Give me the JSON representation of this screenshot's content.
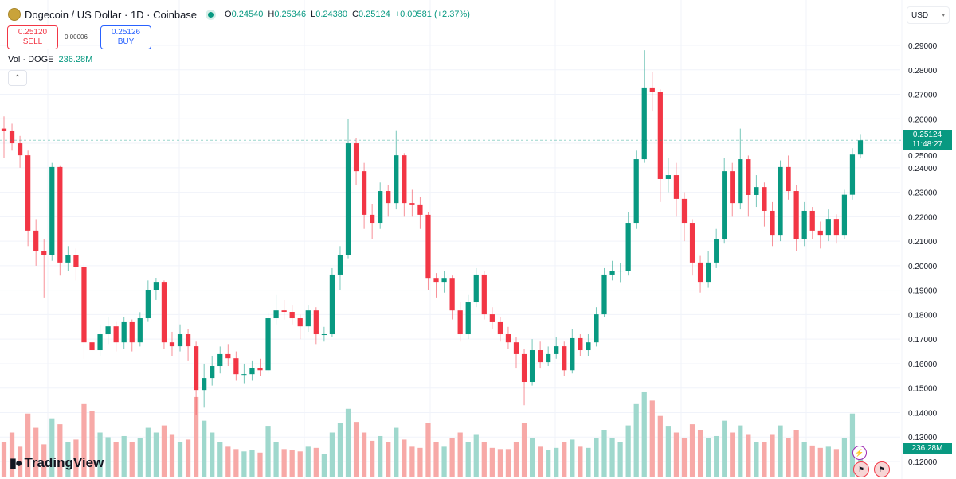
{
  "header": {
    "title": "Dogecoin / US Dollar · 1D · Coinbase",
    "open_label": "O",
    "open": "0.24540",
    "high_label": "H",
    "high": "0.25346",
    "low_label": "L",
    "low": "0.24380",
    "close_label": "C",
    "close": "0.25124",
    "change": "+0.00581 (+2.37%)",
    "market_status": "open"
  },
  "trade": {
    "sell_price": "0.25120",
    "sell_label": "SELL",
    "spread": "0.00006",
    "buy_price": "0.25126",
    "buy_label": "BUY"
  },
  "volume_legend": {
    "label": "Vol · DOGE",
    "value": "236.28M"
  },
  "collapse_icon": "chevron-up",
  "currency": {
    "selected": "USD"
  },
  "price_label": {
    "price": "0.25124",
    "countdown": "11:48:27"
  },
  "volume_label": "236.28M",
  "logo": "TradingView",
  "colors": {
    "up": "#089981",
    "down": "#f23645",
    "up_vol": "#9fd8cd",
    "down_vol": "#f7a9a7",
    "grid": "#f0f3fa"
  },
  "chart_data": {
    "type": "candlestick",
    "title": "Dogecoin / US Dollar · 1D · Coinbase",
    "y_ticks": [
      "0.29000",
      "0.28000",
      "0.27000",
      "0.26000",
      "0.25000",
      "0.24000",
      "0.23000",
      "0.22000",
      "0.21000",
      "0.20000",
      "0.19000",
      "0.18000",
      "0.17000",
      "0.16000",
      "0.15000",
      "0.14000",
      "0.13000",
      "0.12000"
    ],
    "ylim": [
      0.12,
      0.29
    ],
    "grid": true,
    "last_price": 0.25124,
    "ohlc": [
      [
        0.256,
        0.261,
        0.244,
        0.2549
      ],
      [
        0.2549,
        0.258,
        0.247,
        0.25
      ],
      [
        0.25,
        0.253,
        0.24,
        0.2451
      ],
      [
        0.2451,
        0.247,
        0.208,
        0.2143
      ],
      [
        0.2143,
        0.219,
        0.2,
        0.2061
      ],
      [
        0.2061,
        0.211,
        0.187,
        0.2045
      ],
      [
        0.2045,
        0.242,
        0.202,
        0.2403
      ],
      [
        0.2403,
        0.241,
        0.196,
        0.2013
      ],
      [
        0.2013,
        0.208,
        0.198,
        0.2045
      ],
      [
        0.2045,
        0.207,
        0.194,
        0.1996
      ],
      [
        0.1996,
        0.201,
        0.162,
        0.1687
      ],
      [
        0.1687,
        0.172,
        0.148,
        0.1655
      ],
      [
        0.1655,
        0.176,
        0.163,
        0.172
      ],
      [
        0.172,
        0.179,
        0.168,
        0.1752
      ],
      [
        0.1752,
        0.177,
        0.165,
        0.1687
      ],
      [
        0.1687,
        0.179,
        0.166,
        0.1769
      ],
      [
        0.1769,
        0.178,
        0.165,
        0.1687
      ],
      [
        0.1687,
        0.181,
        0.167,
        0.1785
      ],
      [
        0.1785,
        0.194,
        0.177,
        0.1899
      ],
      [
        0.1899,
        0.195,
        0.186,
        0.1931
      ],
      [
        0.1931,
        0.194,
        0.166,
        0.1687
      ],
      [
        0.1687,
        0.173,
        0.163,
        0.1671
      ],
      [
        0.1671,
        0.176,
        0.165,
        0.172
      ],
      [
        0.172,
        0.174,
        0.161,
        0.1671
      ],
      [
        0.1671,
        0.169,
        0.139,
        0.1492
      ],
      [
        0.1492,
        0.16,
        0.142,
        0.1541
      ],
      [
        0.1541,
        0.163,
        0.151,
        0.159
      ],
      [
        0.159,
        0.167,
        0.156,
        0.1639
      ],
      [
        0.1639,
        0.168,
        0.159,
        0.1622
      ],
      [
        0.1622,
        0.165,
        0.153,
        0.1557
      ],
      [
        0.1557,
        0.16,
        0.152,
        0.1557
      ],
      [
        0.1557,
        0.161,
        0.153,
        0.1583
      ],
      [
        0.1583,
        0.162,
        0.155,
        0.1573
      ],
      [
        0.1573,
        0.181,
        0.156,
        0.1785
      ],
      [
        0.1785,
        0.188,
        0.176,
        0.1817
      ],
      [
        0.1817,
        0.186,
        0.178,
        0.1811
      ],
      [
        0.1811,
        0.184,
        0.176,
        0.1785
      ],
      [
        0.1785,
        0.18,
        0.17,
        0.1752
      ],
      [
        0.1752,
        0.184,
        0.173,
        0.1817
      ],
      [
        0.1817,
        0.183,
        0.168,
        0.172
      ],
      [
        0.172,
        0.175,
        0.169,
        0.172
      ],
      [
        0.172,
        0.199,
        0.171,
        0.1964
      ],
      [
        0.1964,
        0.208,
        0.19,
        0.2045
      ],
      [
        0.2045,
        0.26,
        0.203,
        0.25
      ],
      [
        0.25,
        0.252,
        0.233,
        0.2386
      ],
      [
        0.2386,
        0.242,
        0.215,
        0.2208
      ],
      [
        0.2208,
        0.225,
        0.211,
        0.2175
      ],
      [
        0.2175,
        0.234,
        0.215,
        0.2305
      ],
      [
        0.2305,
        0.233,
        0.22,
        0.2256
      ],
      [
        0.2256,
        0.255,
        0.223,
        0.2451
      ],
      [
        0.2451,
        0.246,
        0.22,
        0.2256
      ],
      [
        0.2256,
        0.231,
        0.22,
        0.2247
      ],
      [
        0.2247,
        0.228,
        0.215,
        0.2208
      ],
      [
        0.2208,
        0.222,
        0.19,
        0.1947
      ],
      [
        0.1947,
        0.197,
        0.187,
        0.1931
      ],
      [
        0.1931,
        0.198,
        0.189,
        0.1947
      ],
      [
        0.1947,
        0.196,
        0.178,
        0.1817
      ],
      [
        0.1817,
        0.185,
        0.169,
        0.172
      ],
      [
        0.172,
        0.188,
        0.17,
        0.185
      ],
      [
        0.185,
        0.199,
        0.183,
        0.1964
      ],
      [
        0.1964,
        0.198,
        0.178,
        0.1801
      ],
      [
        0.1801,
        0.183,
        0.174,
        0.1769
      ],
      [
        0.1769,
        0.179,
        0.169,
        0.172
      ],
      [
        0.172,
        0.175,
        0.166,
        0.1687
      ],
      [
        0.1687,
        0.171,
        0.158,
        0.1639
      ],
      [
        0.1639,
        0.166,
        0.143,
        0.1525
      ],
      [
        0.1525,
        0.17,
        0.151,
        0.1655
      ],
      [
        0.1655,
        0.169,
        0.158,
        0.1606
      ],
      [
        0.1606,
        0.167,
        0.159,
        0.1639
      ],
      [
        0.1639,
        0.171,
        0.162,
        0.1671
      ],
      [
        0.1671,
        0.169,
        0.155,
        0.1573
      ],
      [
        0.1573,
        0.174,
        0.156,
        0.1704
      ],
      [
        0.1704,
        0.172,
        0.163,
        0.1655
      ],
      [
        0.1655,
        0.172,
        0.163,
        0.1687
      ],
      [
        0.1687,
        0.183,
        0.167,
        0.1801
      ],
      [
        0.1801,
        0.199,
        0.179,
        0.1964
      ],
      [
        0.1964,
        0.202,
        0.194,
        0.198
      ],
      [
        0.198,
        0.201,
        0.193,
        0.198
      ],
      [
        0.198,
        0.222,
        0.196,
        0.2175
      ],
      [
        0.2175,
        0.247,
        0.215,
        0.2435
      ],
      [
        0.2435,
        0.288,
        0.242,
        0.2728
      ],
      [
        0.2728,
        0.279,
        0.263,
        0.2711
      ],
      [
        0.2711,
        0.272,
        0.226,
        0.2354
      ],
      [
        0.2354,
        0.244,
        0.23,
        0.237
      ],
      [
        0.237,
        0.242,
        0.22,
        0.2273
      ],
      [
        0.2273,
        0.23,
        0.21,
        0.2175
      ],
      [
        0.2175,
        0.219,
        0.196,
        0.2013
      ],
      [
        0.2013,
        0.204,
        0.189,
        0.1931
      ],
      [
        0.1931,
        0.206,
        0.191,
        0.2013
      ],
      [
        0.2013,
        0.215,
        0.199,
        0.211
      ],
      [
        0.211,
        0.244,
        0.209,
        0.2386
      ],
      [
        0.2386,
        0.242,
        0.22,
        0.2256
      ],
      [
        0.2256,
        0.256,
        0.223,
        0.2435
      ],
      [
        0.2435,
        0.245,
        0.22,
        0.2289
      ],
      [
        0.2289,
        0.237,
        0.224,
        0.2321
      ],
      [
        0.2321,
        0.234,
        0.216,
        0.2224
      ],
      [
        0.2224,
        0.226,
        0.208,
        0.2126
      ],
      [
        0.2126,
        0.243,
        0.21,
        0.2403
      ],
      [
        0.2403,
        0.245,
        0.227,
        0.2305
      ],
      [
        0.2305,
        0.233,
        0.206,
        0.211
      ],
      [
        0.211,
        0.226,
        0.208,
        0.2224
      ],
      [
        0.2224,
        0.224,
        0.211,
        0.2143
      ],
      [
        0.2143,
        0.218,
        0.207,
        0.2126
      ],
      [
        0.2126,
        0.223,
        0.21,
        0.2191
      ],
      [
        0.2191,
        0.221,
        0.209,
        0.2126
      ],
      [
        0.2126,
        0.231,
        0.211,
        0.229
      ],
      [
        0.229,
        0.248,
        0.227,
        0.2454
      ],
      [
        0.2454,
        0.25346,
        0.2438,
        0.25124
      ]
    ],
    "volume_millions": [
      300,
      380,
      260,
      540,
      420,
      280,
      500,
      450,
      300,
      320,
      620,
      560,
      380,
      340,
      300,
      350,
      300,
      330,
      420,
      380,
      440,
      360,
      300,
      320,
      680,
      480,
      380,
      300,
      260,
      240,
      220,
      230,
      210,
      430,
      300,
      240,
      230,
      220,
      260,
      250,
      200,
      380,
      460,
      580,
      470,
      380,
      310,
      350,
      300,
      420,
      320,
      260,
      250,
      460,
      300,
      260,
      330,
      380,
      300,
      360,
      300,
      250,
      240,
      240,
      300,
      460,
      330,
      260,
      230,
      250,
      300,
      320,
      260,
      250,
      330,
      400,
      330,
      300,
      440,
      620,
      720,
      650,
      520,
      430,
      380,
      330,
      450,
      400,
      330,
      350,
      480,
      380,
      440,
      360,
      300,
      300,
      360,
      440,
      330,
      400,
      300,
      270,
      250,
      260,
      240,
      330,
      540,
      236.28
    ]
  }
}
